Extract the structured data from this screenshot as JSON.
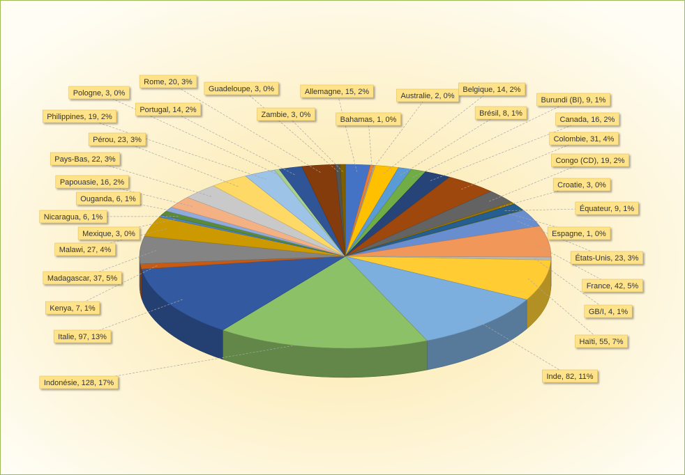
{
  "chart_data": {
    "type": "pie3d",
    "values": [
      15,
      2,
      1,
      14,
      8,
      9,
      16,
      31,
      19,
      3,
      9,
      1,
      23,
      42,
      4,
      55,
      82,
      128,
      97,
      7,
      37,
      27,
      3,
      6,
      6,
      16,
      22,
      23,
      19,
      3,
      14,
      20,
      3,
      3
    ],
    "value_labels": [
      "Allemagne, 15, 2%",
      "Australie, 2, 0%",
      "Bahamas, 1, 0%",
      "Belgique, 14, 2%",
      "Brésil, 8, 1%",
      "Burundi (BI), 9, 1%",
      "Canada, 16, 2%",
      "Colombie, 31, 4%",
      "Congo (CD), 19, 2%",
      "Croatie, 3, 0%",
      "Équateur, 9, 1%",
      "Espagne, 1, 0%",
      "États-Unis, 23, 3%",
      "France, 42, 5%",
      "GB/I, 4, 1%",
      "Haïti, 55, 7%",
      "Inde, 82, 11%",
      "Indonésie, 128, 17%",
      "Italie, 97, 13%",
      "Kenya, 7, 1%",
      "Madagascar, 37, 5%",
      "Malawi, 27, 4%",
      "Mexique, 3, 0%",
      "Nicaragua, 6, 1%",
      "Ouganda, 6, 1%",
      "Papouasie, 16, 2%",
      "Pays-Bas, 22, 3%",
      "Pérou, 23, 3%",
      "Philippines, 19, 2%",
      "Pologne, 3, 0%",
      "Portugal, 14, 2%",
      "Rome, 20, 3%",
      "Guadeloupe, 3, 0%",
      "Zambie, 3, 0%"
    ],
    "colors": [
      "#4472C4",
      "#ED7D31",
      "#A5A5A5",
      "#FFC000",
      "#5B9BD5",
      "#70AD47",
      "#264478",
      "#9E480E",
      "#636363",
      "#997300",
      "#255E91",
      "#43682B",
      "#698ED0",
      "#F1975A",
      "#B7B7B7",
      "#FFCD33",
      "#7CAFDD",
      "#8CC168",
      "#335AA1",
      "#C65B16",
      "#848484",
      "#CC9A00",
      "#4A84C2",
      "#5A8B38",
      "#8FAADC",
      "#F4B183",
      "#C9C9C9",
      "#FFD966",
      "#9DC3E6",
      "#A9D18E",
      "#2F5597",
      "#843C0C",
      "#525252",
      "#7F6000"
    ]
  }
}
